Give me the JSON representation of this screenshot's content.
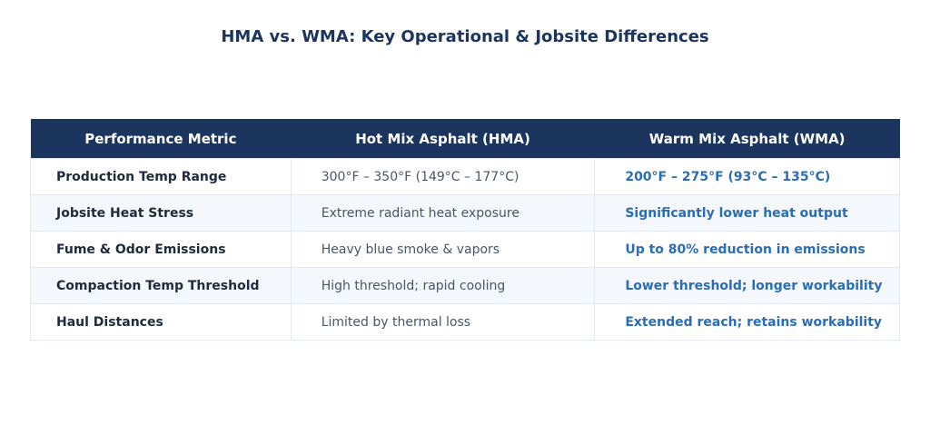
{
  "header": {
    "title": "HMA vs. WMA: Key Operational & Jobsite Differences"
  },
  "table": {
    "columns": [
      "Performance Metric",
      "Hot Mix Asphalt (HMA)",
      "Warm Mix Asphalt (WMA)"
    ],
    "rows": [
      [
        "Production Temp Range",
        "300°F – 350°F (149°C – 177°C)",
        "200°F – 275°F (93°C – 135°C)"
      ],
      [
        "Jobsite Heat Stress",
        "Extreme radiant heat exposure",
        "Significantly lower heat output"
      ],
      [
        "Fume & Odor Emissions",
        "Heavy blue smoke & vapors",
        "Up to 80% reduction in emissions"
      ],
      [
        "Compaction Temp Threshold",
        "High threshold; rapid cooling",
        "Lower threshold; longer workability"
      ],
      [
        "Haul Distances",
        "Limited by thermal loss",
        "Extended reach; retains workability"
      ]
    ]
  }
}
